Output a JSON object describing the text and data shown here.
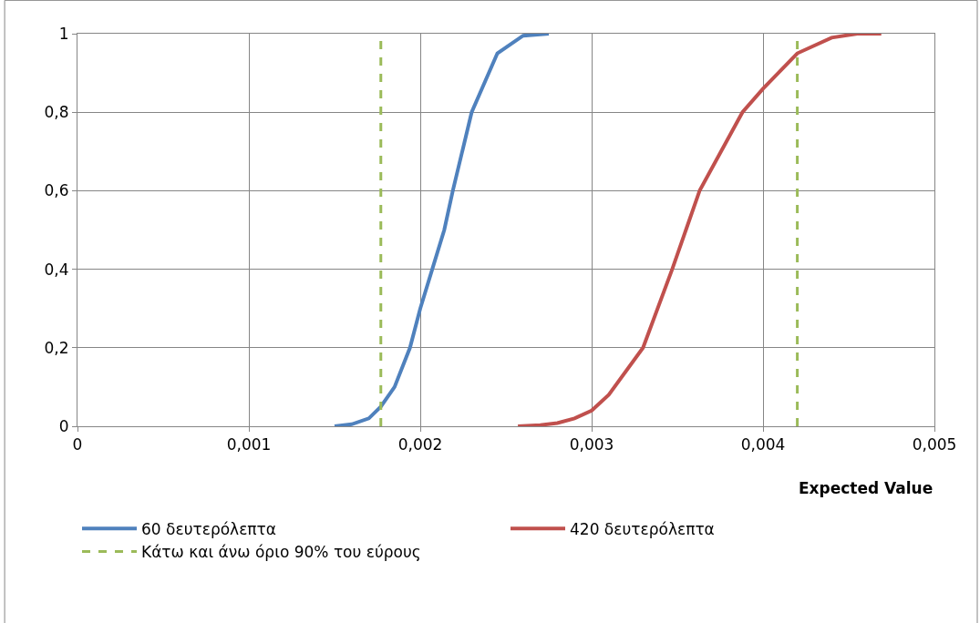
{
  "chart_data": {
    "type": "line",
    "xlabel": "Expected Value",
    "xlim": [
      0,
      0.005
    ],
    "ylim": [
      0,
      1
    ],
    "xticks": [
      0,
      {
        "value": 0.001,
        "label": "0,001"
      },
      {
        "value": 0.002,
        "label": "0,002"
      },
      {
        "value": 0.003,
        "label": "0,003"
      },
      {
        "value": 0.004,
        "label": "0,004"
      },
      {
        "value": 0.005,
        "label": "0,005"
      }
    ],
    "yticks": [
      0,
      {
        "value": 0.2,
        "label": "0,2"
      },
      {
        "value": 0.4,
        "label": "0,4"
      },
      {
        "value": 0.6,
        "label": "0,6"
      },
      {
        "value": 0.8,
        "label": "0,8"
      },
      1
    ],
    "grid": true,
    "legend": "bottom",
    "marker": "none",
    "series": [
      {
        "name": "60 δευτερόλεπτα",
        "color": "#4f81bd",
        "line_style": "solid",
        "x": [
          0.0015,
          0.0016,
          0.0017,
          0.00177,
          0.00185,
          0.00194,
          0.002,
          0.00207,
          0.00214,
          0.00219,
          0.0023,
          0.00245,
          0.0026,
          0.00275
        ],
        "values": [
          0,
          0.005,
          0.02,
          0.05,
          0.1,
          0.2,
          0.3,
          0.4,
          0.5,
          0.6,
          0.8,
          0.95,
          0.995,
          1
        ]
      },
      {
        "name": "420 δευτερόλεπτα",
        "color": "#c0504d",
        "line_style": "solid",
        "x": [
          0.00257,
          0.0027,
          0.0028,
          0.0029,
          0.003,
          0.0031,
          0.0033,
          0.00347,
          0.00355,
          0.00363,
          0.00388,
          0.004,
          0.0042,
          0.0044,
          0.00455,
          0.00469
        ],
        "values": [
          0,
          0.003,
          0.008,
          0.02,
          0.04,
          0.08,
          0.2,
          0.4,
          0.5,
          0.6,
          0.8,
          0.86,
          0.95,
          0.99,
          1,
          1
        ]
      },
      {
        "name": "Κάτω και άνω όριο 90% του εύρους",
        "color": "#9bbb59",
        "line_style": "dashed",
        "x": [
          0.00177,
          0.00177,
          null,
          0.0042,
          0.0042
        ],
        "values": [
          0,
          1,
          null,
          0,
          1
        ]
      }
    ]
  }
}
